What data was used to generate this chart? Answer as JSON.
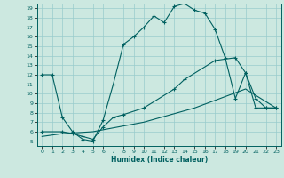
{
  "title": "",
  "xlabel": "Humidex (Indice chaleur)",
  "bg_color": "#cce8e0",
  "line_color": "#006060",
  "grid_color": "#99cccc",
  "xlim": [
    -0.5,
    23.5
  ],
  "ylim": [
    4.5,
    19.5
  ],
  "xticks": [
    0,
    1,
    2,
    3,
    4,
    5,
    6,
    7,
    8,
    9,
    10,
    11,
    12,
    13,
    14,
    15,
    16,
    17,
    18,
    19,
    20,
    21,
    22,
    23
  ],
  "yticks": [
    5,
    6,
    7,
    8,
    9,
    10,
    11,
    12,
    13,
    14,
    15,
    16,
    17,
    18,
    19
  ],
  "curve1_x": [
    0,
    1,
    2,
    3,
    4,
    5,
    6,
    7,
    8,
    9,
    10,
    11,
    12,
    13,
    14,
    15,
    16,
    17,
    18,
    19,
    20,
    21,
    22,
    23
  ],
  "curve1_y": [
    12,
    12,
    7.5,
    6,
    5.2,
    5.0,
    7.2,
    11,
    15.2,
    16.0,
    17.0,
    18.2,
    17.5,
    19.2,
    19.5,
    18.8,
    18.5,
    16.8,
    13.8,
    9.5,
    12.2,
    8.5,
    8.5,
    8.5
  ],
  "curve2_x": [
    0,
    2,
    3,
    4,
    5,
    6,
    7,
    8,
    10,
    13,
    14,
    17,
    19,
    20,
    21,
    22,
    23
  ],
  "curve2_y": [
    6.0,
    6.0,
    5.8,
    5.5,
    5.2,
    6.5,
    7.5,
    7.8,
    8.5,
    10.5,
    11.5,
    13.5,
    13.8,
    12.2,
    9.5,
    8.5,
    8.5
  ],
  "curve3_x": [
    0,
    2,
    5,
    10,
    15,
    20,
    23
  ],
  "curve3_y": [
    5.5,
    5.8,
    6.0,
    7.0,
    8.5,
    10.5,
    8.5
  ]
}
